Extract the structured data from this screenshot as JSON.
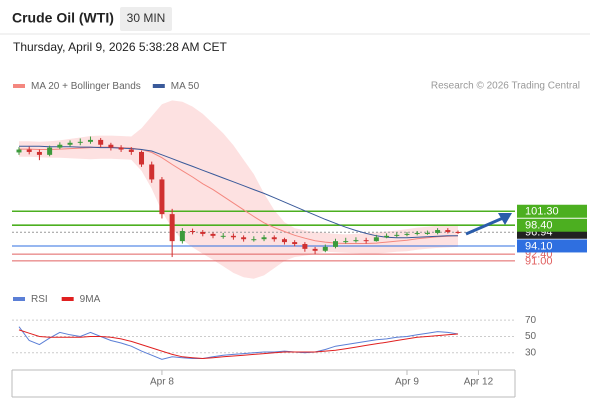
{
  "header": {
    "instrument": "Crude Oil (WTI)",
    "interval": "30 MIN",
    "timestamp": "Thursday, April 9, 2026 5:38:28 AM CET",
    "credit": "Research © 2026 Trading Central"
  },
  "chart_data": [
    {
      "type": "candlestick",
      "up_color": "#3c9a3c",
      "down_color": "#d03030",
      "open": [
        113.5,
        114.1,
        113.6,
        113.0,
        114.5,
        115.1,
        115.5,
        115.7,
        116.1,
        115.1,
        114.5,
        114.1,
        113.6,
        111.0,
        107.9,
        100.7,
        95.1,
        97.2,
        97.0,
        96.6,
        96.2,
        96.2,
        95.9,
        95.5,
        95.5,
        95.9,
        95.5,
        94.9,
        94.5,
        93.5,
        93.1,
        93.9,
        95.1,
        95.1,
        95.3,
        95.1,
        95.9,
        96.2,
        96.4,
        96.6,
        96.8,
        96.8,
        97.4,
        97.0,
        null,
        null,
        null,
        null,
        null
      ],
      "high": [
        114.6,
        114.7,
        114.1,
        114.9,
        115.6,
        116.0,
        116.4,
        116.8,
        116.5,
        115.5,
        115.0,
        114.6,
        113.9,
        111.6,
        108.4,
        101.8,
        97.8,
        97.7,
        97.4,
        96.9,
        96.8,
        96.7,
        96.3,
        96.1,
        96.4,
        96.3,
        95.8,
        95.3,
        94.9,
        93.9,
        94.4,
        95.6,
        95.8,
        95.9,
        95.8,
        96.4,
        96.7,
        96.9,
        97.0,
        97.2,
        97.3,
        97.8,
        97.8,
        97.3,
        null,
        null,
        null,
        null,
        null
      ],
      "low": [
        113.0,
        113.1,
        111.9,
        112.7,
        114.2,
        114.7,
        115.0,
        115.3,
        114.6,
        113.9,
        113.6,
        113.0,
        110.5,
        107.2,
        99.8,
        91.8,
        94.6,
        96.5,
        96.1,
        95.7,
        95.6,
        95.4,
        95.0,
        95.0,
        95.1,
        95.0,
        94.4,
        94.0,
        92.9,
        92.4,
        92.8,
        93.6,
        94.6,
        94.8,
        94.6,
        95.0,
        95.7,
        95.9,
        96.1,
        96.3,
        96.4,
        96.5,
        96.7,
        96.6,
        null,
        null,
        null,
        null,
        null
      ],
      "close": [
        114.1,
        113.6,
        113.0,
        114.5,
        115.1,
        115.5,
        115.7,
        116.1,
        115.1,
        114.5,
        114.1,
        113.6,
        111.0,
        107.9,
        100.7,
        95.1,
        97.2,
        97.0,
        96.6,
        96.2,
        96.2,
        95.9,
        95.5,
        95.5,
        95.9,
        95.5,
        94.9,
        94.5,
        93.5,
        93.1,
        93.9,
        95.1,
        95.1,
        95.3,
        95.1,
        95.9,
        96.2,
        96.4,
        96.6,
        96.8,
        96.8,
        97.4,
        97.0,
        96.94,
        null,
        null,
        null,
        null,
        null
      ],
      "series": [
        {
          "name": "MA 20 + Bollinger Bands",
          "color": "#f4877f",
          "band_color": "#fde1e1",
          "values": [
            114.2,
            114.2,
            114.1,
            114.1,
            114.2,
            114.3,
            114.4,
            114.5,
            114.6,
            114.6,
            114.5,
            114.4,
            114.1,
            113.5,
            112.4,
            111.0,
            109.7,
            108.4,
            107.0,
            105.8,
            104.4,
            103.0,
            101.6,
            100.2,
            98.9,
            97.9,
            97.1,
            96.3,
            95.7,
            95.2,
            94.9,
            94.7,
            94.6,
            94.6,
            94.6,
            94.7,
            94.9,
            95.1,
            95.3,
            95.6,
            95.8,
            96.0,
            96.1,
            96.2,
            null,
            null,
            null,
            null,
            null
          ],
          "upper": [
            115.8,
            115.8,
            115.7,
            115.8,
            116.0,
            116.3,
            116.6,
            116.9,
            117.0,
            117.0,
            116.9,
            116.8,
            118.5,
            121.0,
            123.5,
            124.3,
            124.0,
            123.0,
            121.5,
            119.5,
            117.5,
            115.0,
            112.0,
            109.0,
            105.0,
            101.5,
            99.0,
            97.8,
            97.3,
            97.0,
            96.8,
            96.6,
            96.5,
            96.6,
            96.7,
            96.9,
            97.1,
            97.3,
            97.6,
            97.9,
            98.1,
            98.3,
            98.4,
            98.5,
            null,
            null,
            null,
            null,
            null
          ],
          "lower": [
            112.6,
            112.6,
            112.5,
            112.4,
            112.4,
            112.3,
            112.2,
            112.1,
            112.2,
            112.2,
            112.1,
            112.0,
            109.7,
            106.0,
            101.3,
            97.7,
            95.4,
            93.8,
            92.5,
            91.2,
            89.9,
            88.5,
            87.6,
            87.3,
            88.0,
            89.5,
            91.0,
            91.8,
            92.1,
            92.4,
            92.9,
            92.8,
            92.7,
            92.6,
            92.5,
            92.5,
            92.7,
            92.9,
            93.0,
            93.3,
            93.5,
            93.7,
            93.8,
            93.9,
            null,
            null,
            null,
            null,
            null
          ]
        },
        {
          "name": "MA 50",
          "color": "#3a5a9a",
          "values": [
            114.8,
            114.8,
            114.8,
            114.7,
            114.7,
            114.7,
            114.6,
            114.6,
            114.5,
            114.5,
            114.4,
            114.3,
            114.1,
            113.8,
            113.0,
            112.2,
            111.4,
            110.6,
            109.8,
            109.0,
            108.2,
            107.4,
            106.6,
            105.8,
            105.0,
            104.1,
            103.2,
            102.3,
            101.4,
            100.5,
            99.6,
            98.8,
            98.0,
            97.3,
            96.7,
            96.2,
            95.9,
            95.8,
            95.8,
            95.9,
            96.0,
            96.1,
            96.2,
            96.2,
            null,
            null,
            null,
            null,
            null
          ]
        }
      ],
      "levels": [
        {
          "value": 92.4,
          "label": "92.40",
          "color": "#e06060",
          "box": false
        },
        {
          "value": 91.0,
          "label": "91.00",
          "color": "#e06060",
          "box": false
        },
        {
          "value": 96.94,
          "label": "96.94",
          "color": "#222222",
          "box": true
        },
        {
          "value": 98.4,
          "label": "98.40",
          "color": "#4caf20",
          "box": true
        },
        {
          "value": 101.3,
          "label": "101.30",
          "color": "#4caf20",
          "box": true
        },
        {
          "value": 94.1,
          "label": "94.10",
          "color": "#2f6fe0",
          "box": true
        }
      ],
      "ylim": [
        86,
        125
      ]
    },
    {
      "type": "line",
      "categories": [
        null,
        null,
        null,
        null,
        null,
        null,
        null,
        null,
        null,
        null,
        null,
        null,
        null,
        null,
        "Apr 8",
        null,
        null,
        null,
        null,
        null,
        null,
        null,
        null,
        null,
        null,
        null,
        null,
        null,
        null,
        null,
        null,
        null,
        null,
        null,
        null,
        null,
        null,
        null,
        "Apr 9",
        null,
        null,
        null,
        null,
        null,
        null,
        "Apr 12",
        null,
        null,
        null
      ],
      "series": [
        {
          "name": "RSI",
          "color": "#5b7fd6",
          "values": [
            62,
            45,
            40,
            48,
            55,
            52,
            50,
            55,
            50,
            45,
            42,
            38,
            32,
            27,
            22,
            25,
            24,
            23,
            23,
            25,
            27,
            28,
            29,
            30,
            31,
            31,
            32,
            31,
            30,
            31,
            34,
            38,
            40,
            42,
            44,
            46,
            47,
            49,
            50,
            52,
            54,
            56,
            55,
            53,
            null,
            null,
            null,
            null,
            null
          ]
        },
        {
          "name": "9MA",
          "color": "#e02020",
          "values": [
            58,
            54,
            50,
            49,
            49,
            49,
            49,
            50,
            50,
            49,
            47,
            44,
            40,
            36,
            32,
            28,
            25,
            24,
            23,
            24,
            25,
            26,
            27,
            28,
            29,
            30,
            31,
            31,
            31,
            31,
            32,
            33,
            35,
            37,
            39,
            41,
            43,
            45,
            47,
            49,
            50,
            51,
            52,
            53,
            null,
            null,
            null,
            null,
            null
          ]
        }
      ],
      "ylim": [
        15,
        80
      ],
      "yticks": [
        70,
        50,
        30
      ],
      "grid": true
    }
  ]
}
